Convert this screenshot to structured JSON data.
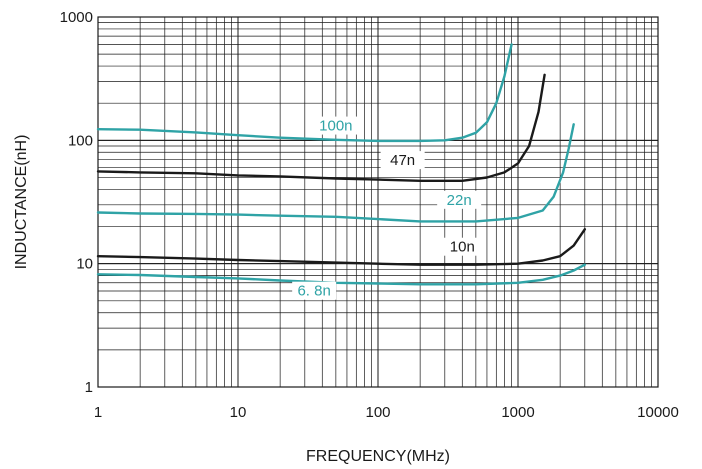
{
  "chart_data": {
    "type": "line",
    "title": "",
    "xlabel": "FREQUENCY(MHz)",
    "ylabel": "INDUCTANCE(nH)",
    "x_scale": "log",
    "y_scale": "log",
    "xlim": [
      1,
      10000
    ],
    "ylim": [
      1,
      1000
    ],
    "grid": true,
    "x_ticks": [
      {
        "value": 1,
        "label": "1"
      },
      {
        "value": 10,
        "label": "10"
      },
      {
        "value": 100,
        "label": "100"
      },
      {
        "value": 1000,
        "label": "1000"
      },
      {
        "value": 10000,
        "label": "10000"
      }
    ],
    "y_ticks": [
      {
        "value": 1,
        "label": "1"
      },
      {
        "value": 10,
        "label": "10"
      },
      {
        "value": 100,
        "label": "100"
      },
      {
        "value": 1000,
        "label": "1000"
      }
    ],
    "series": [
      {
        "name": "100n",
        "color": "#2fa3a6",
        "label_at": [
          50,
          120
        ],
        "points": [
          [
            1,
            123
          ],
          [
            2,
            122
          ],
          [
            5,
            116
          ],
          [
            10,
            110
          ],
          [
            20,
            105
          ],
          [
            50,
            101
          ],
          [
            100,
            99
          ],
          [
            200,
            99
          ],
          [
            300,
            100
          ],
          [
            400,
            105
          ],
          [
            500,
            115
          ],
          [
            600,
            140
          ],
          [
            700,
            200
          ],
          [
            800,
            330
          ],
          [
            900,
            600
          ]
        ]
      },
      {
        "name": "47n",
        "color": "#1a1a1a",
        "label_at": [
          150,
          63
        ],
        "points": [
          [
            1,
            56
          ],
          [
            2,
            55
          ],
          [
            5,
            54
          ],
          [
            10,
            52
          ],
          [
            20,
            51
          ],
          [
            50,
            49
          ],
          [
            100,
            48
          ],
          [
            200,
            47
          ],
          [
            400,
            47
          ],
          [
            600,
            50
          ],
          [
            800,
            55
          ],
          [
            1000,
            65
          ],
          [
            1200,
            90
          ],
          [
            1400,
            170
          ],
          [
            1550,
            340
          ]
        ]
      },
      {
        "name": "22n",
        "color": "#2fa3a6",
        "label_at": [
          380,
          30
        ],
        "points": [
          [
            1,
            26
          ],
          [
            2,
            25.5
          ],
          [
            5,
            25.3
          ],
          [
            10,
            25
          ],
          [
            20,
            24.5
          ],
          [
            50,
            24
          ],
          [
            100,
            23
          ],
          [
            200,
            22
          ],
          [
            500,
            22
          ],
          [
            1000,
            23.5
          ],
          [
            1500,
            27
          ],
          [
            1800,
            35
          ],
          [
            2100,
            55
          ],
          [
            2300,
            85
          ],
          [
            2500,
            135
          ]
        ]
      },
      {
        "name": "10n",
        "color": "#1a1a1a",
        "label_at": [
          400,
          12.5
        ],
        "points": [
          [
            1,
            11.5
          ],
          [
            2,
            11.3
          ],
          [
            5,
            11
          ],
          [
            10,
            10.7
          ],
          [
            20,
            10.5
          ],
          [
            50,
            10.2
          ],
          [
            100,
            10
          ],
          [
            200,
            9.8
          ],
          [
            500,
            9.8
          ],
          [
            1000,
            10
          ],
          [
            1500,
            10.6
          ],
          [
            2000,
            11.5
          ],
          [
            2500,
            14
          ],
          [
            3000,
            19
          ]
        ]
      },
      {
        "name": "6. 8n",
        "color": "#2fa3a6",
        "label_at": [
          35,
          5.5
        ],
        "points": [
          [
            1,
            8.2
          ],
          [
            2,
            8.1
          ],
          [
            5,
            7.8
          ],
          [
            10,
            7.6
          ],
          [
            20,
            7.3
          ],
          [
            50,
            7.0
          ],
          [
            100,
            6.9
          ],
          [
            200,
            6.8
          ],
          [
            500,
            6.8
          ],
          [
            1000,
            7.0
          ],
          [
            1500,
            7.4
          ],
          [
            2000,
            8.0
          ],
          [
            2500,
            8.8
          ],
          [
            3000,
            9.8
          ]
        ]
      }
    ]
  }
}
